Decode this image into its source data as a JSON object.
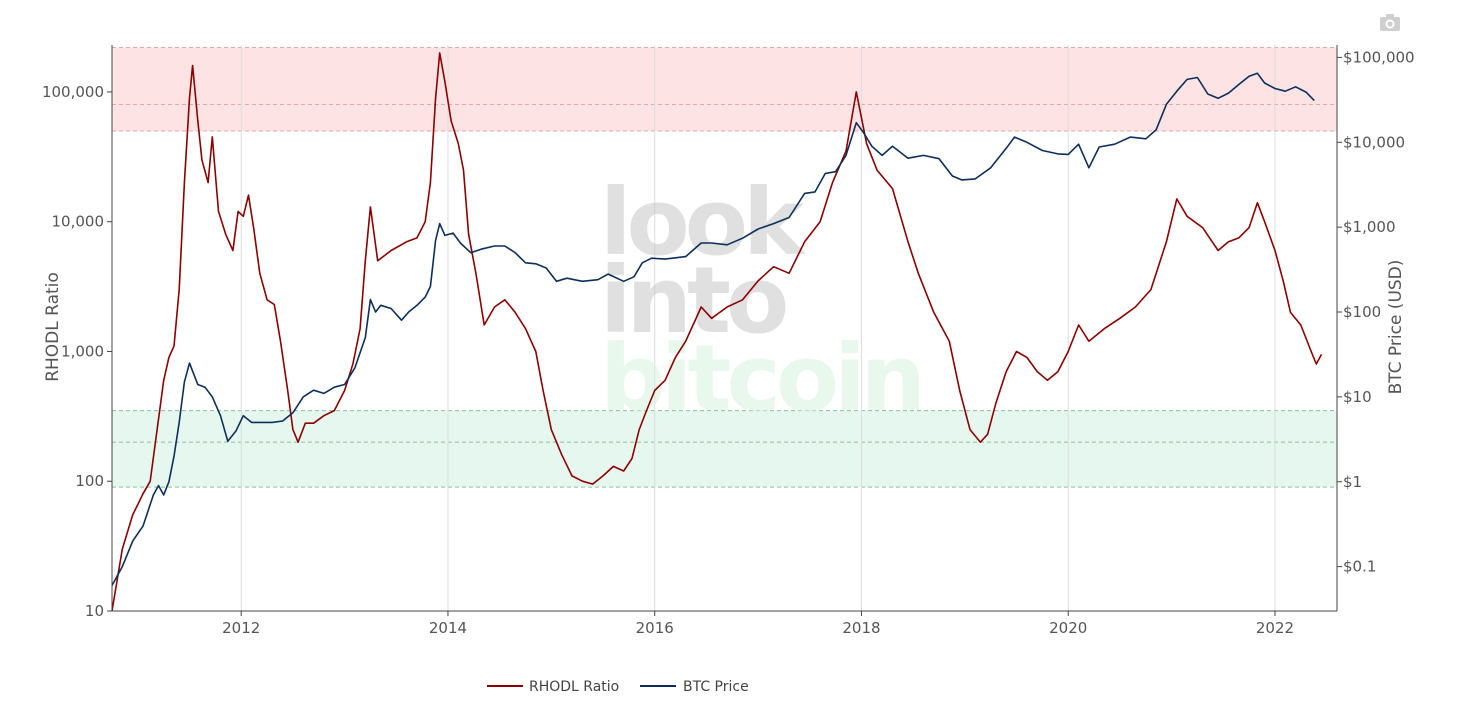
{
  "toolbar": {
    "camera_icon": "camera-icon"
  },
  "watermark": {
    "lines": [
      "look",
      "into",
      "bitcoin"
    ]
  },
  "colors": {
    "rhodl": "#8b0000",
    "btc": "#0d2f5a",
    "red_band": "#fde3e4",
    "green_band": "#e5f7ee",
    "red_band_line": "#e5a8a8",
    "green_band_line": "#8fbf9f",
    "grid": "#dddddd",
    "axis": "#444444"
  },
  "chart_data": {
    "type": "line",
    "x_ticks": [
      "2012",
      "2014",
      "2016",
      "2018",
      "2020",
      "2022"
    ],
    "xlim": [
      2010.75,
      2022.6
    ],
    "ylabel": "RHODL Ratio",
    "y_scale": "log",
    "ylim": [
      10,
      230000
    ],
    "y_ticks": [
      {
        "value": 10,
        "label": "10"
      },
      {
        "value": 100,
        "label": "100"
      },
      {
        "value": 1000,
        "label": "1,000"
      },
      {
        "value": 10000,
        "label": "10,000"
      },
      {
        "value": 100000,
        "label": "100,000"
      }
    ],
    "y2label": "BTC Price (USD)",
    "y2_scale": "log",
    "y2lim": [
      0.03,
      140000
    ],
    "y2_ticks": [
      {
        "value": 0.1,
        "label": "$0.1"
      },
      {
        "value": 1,
        "label": "$1"
      },
      {
        "value": 10,
        "label": "$10"
      },
      {
        "value": 100,
        "label": "$100"
      },
      {
        "value": 1000,
        "label": "$1,000"
      },
      {
        "value": 10000,
        "label": "$10,000"
      },
      {
        "value": 100000,
        "label": "$100,000"
      }
    ],
    "bands": [
      {
        "axis": "y",
        "from": 50000,
        "to": 220000,
        "mid": 80000,
        "color": "red"
      },
      {
        "axis": "y",
        "from": 90,
        "to": 350,
        "mid": 200,
        "color": "green"
      }
    ],
    "legend": {
      "placement": "bottom-center"
    },
    "series": [
      {
        "name": "RHODL Ratio",
        "color": "#8b0000",
        "axis": "y",
        "points": [
          [
            2010.75,
            10
          ],
          [
            2010.85,
            30
          ],
          [
            2010.95,
            55
          ],
          [
            2011.05,
            80
          ],
          [
            2011.12,
            100
          ],
          [
            2011.2,
            300
          ],
          [
            2011.25,
            600
          ],
          [
            2011.3,
            900
          ],
          [
            2011.35,
            1100
          ],
          [
            2011.4,
            3000
          ],
          [
            2011.45,
            20000
          ],
          [
            2011.5,
            90000
          ],
          [
            2011.53,
            160000
          ],
          [
            2011.58,
            60000
          ],
          [
            2011.62,
            30000
          ],
          [
            2011.68,
            20000
          ],
          [
            2011.72,
            45000
          ],
          [
            2011.78,
            12000
          ],
          [
            2011.85,
            8000
          ],
          [
            2011.92,
            6000
          ],
          [
            2011.97,
            12000
          ],
          [
            2012.02,
            11000
          ],
          [
            2012.07,
            16000
          ],
          [
            2012.12,
            9000
          ],
          [
            2012.18,
            4000
          ],
          [
            2012.25,
            2500
          ],
          [
            2012.32,
            2300
          ],
          [
            2012.38,
            1200
          ],
          [
            2012.45,
            500
          ],
          [
            2012.5,
            250
          ],
          [
            2012.55,
            200
          ],
          [
            2012.62,
            280
          ],
          [
            2012.7,
            280
          ],
          [
            2012.8,
            320
          ],
          [
            2012.9,
            350
          ],
          [
            2013.0,
            500
          ],
          [
            2013.08,
            800
          ],
          [
            2013.15,
            1500
          ],
          [
            2013.2,
            5000
          ],
          [
            2013.25,
            13000
          ],
          [
            2013.32,
            5000
          ],
          [
            2013.45,
            6000
          ],
          [
            2013.6,
            7000
          ],
          [
            2013.7,
            7500
          ],
          [
            2013.78,
            10000
          ],
          [
            2013.83,
            20000
          ],
          [
            2013.88,
            90000
          ],
          [
            2013.92,
            200000
          ],
          [
            2013.97,
            120000
          ],
          [
            2014.03,
            60000
          ],
          [
            2014.1,
            40000
          ],
          [
            2014.15,
            25000
          ],
          [
            2014.2,
            8000
          ],
          [
            2014.27,
            4000
          ],
          [
            2014.35,
            1600
          ],
          [
            2014.45,
            2200
          ],
          [
            2014.55,
            2500
          ],
          [
            2014.65,
            2000
          ],
          [
            2014.75,
            1500
          ],
          [
            2014.85,
            1000
          ],
          [
            2014.92,
            500
          ],
          [
            2015.0,
            250
          ],
          [
            2015.1,
            160
          ],
          [
            2015.2,
            110
          ],
          [
            2015.3,
            100
          ],
          [
            2015.4,
            95
          ],
          [
            2015.5,
            110
          ],
          [
            2015.6,
            130
          ],
          [
            2015.7,
            120
          ],
          [
            2015.78,
            150
          ],
          [
            2015.85,
            250
          ],
          [
            2015.92,
            350
          ],
          [
            2016.0,
            500
          ],
          [
            2016.1,
            600
          ],
          [
            2016.2,
            900
          ],
          [
            2016.3,
            1200
          ],
          [
            2016.45,
            2200
          ],
          [
            2016.55,
            1800
          ],
          [
            2016.7,
            2200
          ],
          [
            2016.85,
            2500
          ],
          [
            2017.0,
            3500
          ],
          [
            2017.15,
            4500
          ],
          [
            2017.3,
            4000
          ],
          [
            2017.45,
            7000
          ],
          [
            2017.6,
            10000
          ],
          [
            2017.72,
            20000
          ],
          [
            2017.85,
            35000
          ],
          [
            2017.95,
            100000
          ],
          [
            2018.05,
            40000
          ],
          [
            2018.15,
            25000
          ],
          [
            2018.3,
            18000
          ],
          [
            2018.45,
            7000
          ],
          [
            2018.55,
            4000
          ],
          [
            2018.7,
            2000
          ],
          [
            2018.85,
            1200
          ],
          [
            2018.95,
            500
          ],
          [
            2019.05,
            250
          ],
          [
            2019.15,
            200
          ],
          [
            2019.22,
            230
          ],
          [
            2019.3,
            400
          ],
          [
            2019.4,
            700
          ],
          [
            2019.5,
            1000
          ],
          [
            2019.6,
            900
          ],
          [
            2019.7,
            700
          ],
          [
            2019.8,
            600
          ],
          [
            2019.9,
            700
          ],
          [
            2020.0,
            1000
          ],
          [
            2020.1,
            1600
          ],
          [
            2020.2,
            1200
          ],
          [
            2020.35,
            1500
          ],
          [
            2020.5,
            1800
          ],
          [
            2020.65,
            2200
          ],
          [
            2020.8,
            3000
          ],
          [
            2020.95,
            7000
          ],
          [
            2021.05,
            15000
          ],
          [
            2021.15,
            11000
          ],
          [
            2021.3,
            9000
          ],
          [
            2021.45,
            6000
          ],
          [
            2021.55,
            7000
          ],
          [
            2021.65,
            7500
          ],
          [
            2021.75,
            9000
          ],
          [
            2021.83,
            14000
          ],
          [
            2021.9,
            10000
          ],
          [
            2022.0,
            6000
          ],
          [
            2022.08,
            3500
          ],
          [
            2022.15,
            2000
          ],
          [
            2022.25,
            1600
          ],
          [
            2022.35,
            1000
          ],
          [
            2022.4,
            800
          ],
          [
            2022.45,
            950
          ]
        ]
      },
      {
        "name": "BTC Price",
        "color": "#0d2f5a",
        "axis": "y2",
        "points": [
          [
            2010.75,
            0.06
          ],
          [
            2010.85,
            0.1
          ],
          [
            2010.95,
            0.2
          ],
          [
            2011.05,
            0.3
          ],
          [
            2011.15,
            0.7
          ],
          [
            2011.2,
            0.9
          ],
          [
            2011.25,
            0.7
          ],
          [
            2011.3,
            1
          ],
          [
            2011.35,
            2
          ],
          [
            2011.4,
            5
          ],
          [
            2011.45,
            15
          ],
          [
            2011.5,
            25
          ],
          [
            2011.58,
            14
          ],
          [
            2011.65,
            13
          ],
          [
            2011.72,
            10
          ],
          [
            2011.8,
            6
          ],
          [
            2011.87,
            3
          ],
          [
            2011.95,
            4
          ],
          [
            2012.02,
            6
          ],
          [
            2012.1,
            5
          ],
          [
            2012.2,
            5
          ],
          [
            2012.3,
            5
          ],
          [
            2012.4,
            5.2
          ],
          [
            2012.5,
            6.5
          ],
          [
            2012.6,
            10
          ],
          [
            2012.7,
            12
          ],
          [
            2012.8,
            11
          ],
          [
            2012.9,
            13
          ],
          [
            2013.0,
            14
          ],
          [
            2013.1,
            22
          ],
          [
            2013.2,
            50
          ],
          [
            2013.25,
            140
          ],
          [
            2013.3,
            100
          ],
          [
            2013.35,
            120
          ],
          [
            2013.45,
            110
          ],
          [
            2013.55,
            80
          ],
          [
            2013.62,
            100
          ],
          [
            2013.7,
            120
          ],
          [
            2013.78,
            150
          ],
          [
            2013.83,
            200
          ],
          [
            2013.88,
            700
          ],
          [
            2013.92,
            1100
          ],
          [
            2013.97,
            800
          ],
          [
            2014.05,
            850
          ],
          [
            2014.12,
            650
          ],
          [
            2014.22,
            500
          ],
          [
            2014.32,
            550
          ],
          [
            2014.45,
            600
          ],
          [
            2014.55,
            600
          ],
          [
            2014.65,
            500
          ],
          [
            2014.75,
            380
          ],
          [
            2014.85,
            370
          ],
          [
            2014.95,
            330
          ],
          [
            2015.05,
            230
          ],
          [
            2015.15,
            250
          ],
          [
            2015.3,
            230
          ],
          [
            2015.45,
            240
          ],
          [
            2015.55,
            280
          ],
          [
            2015.7,
            230
          ],
          [
            2015.8,
            260
          ],
          [
            2015.88,
            380
          ],
          [
            2015.97,
            430
          ],
          [
            2016.1,
            420
          ],
          [
            2016.3,
            450
          ],
          [
            2016.45,
            650
          ],
          [
            2016.55,
            650
          ],
          [
            2016.7,
            620
          ],
          [
            2016.85,
            740
          ],
          [
            2017.0,
            950
          ],
          [
            2017.15,
            1100
          ],
          [
            2017.3,
            1300
          ],
          [
            2017.45,
            2500
          ],
          [
            2017.55,
            2600
          ],
          [
            2017.65,
            4300
          ],
          [
            2017.75,
            4500
          ],
          [
            2017.85,
            7000
          ],
          [
            2017.95,
            17000
          ],
          [
            2018.02,
            13000
          ],
          [
            2018.1,
            9000
          ],
          [
            2018.2,
            7000
          ],
          [
            2018.3,
            9000
          ],
          [
            2018.45,
            6500
          ],
          [
            2018.6,
            7000
          ],
          [
            2018.75,
            6400
          ],
          [
            2018.88,
            4000
          ],
          [
            2018.97,
            3600
          ],
          [
            2019.1,
            3700
          ],
          [
            2019.25,
            5000
          ],
          [
            2019.4,
            8500
          ],
          [
            2019.48,
            11500
          ],
          [
            2019.6,
            10000
          ],
          [
            2019.75,
            8000
          ],
          [
            2019.9,
            7300
          ],
          [
            2020.0,
            7200
          ],
          [
            2020.1,
            9500
          ],
          [
            2020.2,
            5000
          ],
          [
            2020.3,
            8800
          ],
          [
            2020.45,
            9500
          ],
          [
            2020.6,
            11500
          ],
          [
            2020.75,
            11000
          ],
          [
            2020.85,
            14000
          ],
          [
            2020.95,
            28000
          ],
          [
            2021.05,
            40000
          ],
          [
            2021.15,
            55000
          ],
          [
            2021.25,
            58000
          ],
          [
            2021.35,
            37000
          ],
          [
            2021.45,
            33000
          ],
          [
            2021.55,
            38000
          ],
          [
            2021.65,
            48000
          ],
          [
            2021.75,
            60000
          ],
          [
            2021.83,
            65000
          ],
          [
            2021.9,
            50000
          ],
          [
            2022.0,
            43000
          ],
          [
            2022.1,
            40000
          ],
          [
            2022.2,
            45000
          ],
          [
            2022.3,
            39000
          ],
          [
            2022.38,
            31000
          ]
        ]
      }
    ]
  }
}
